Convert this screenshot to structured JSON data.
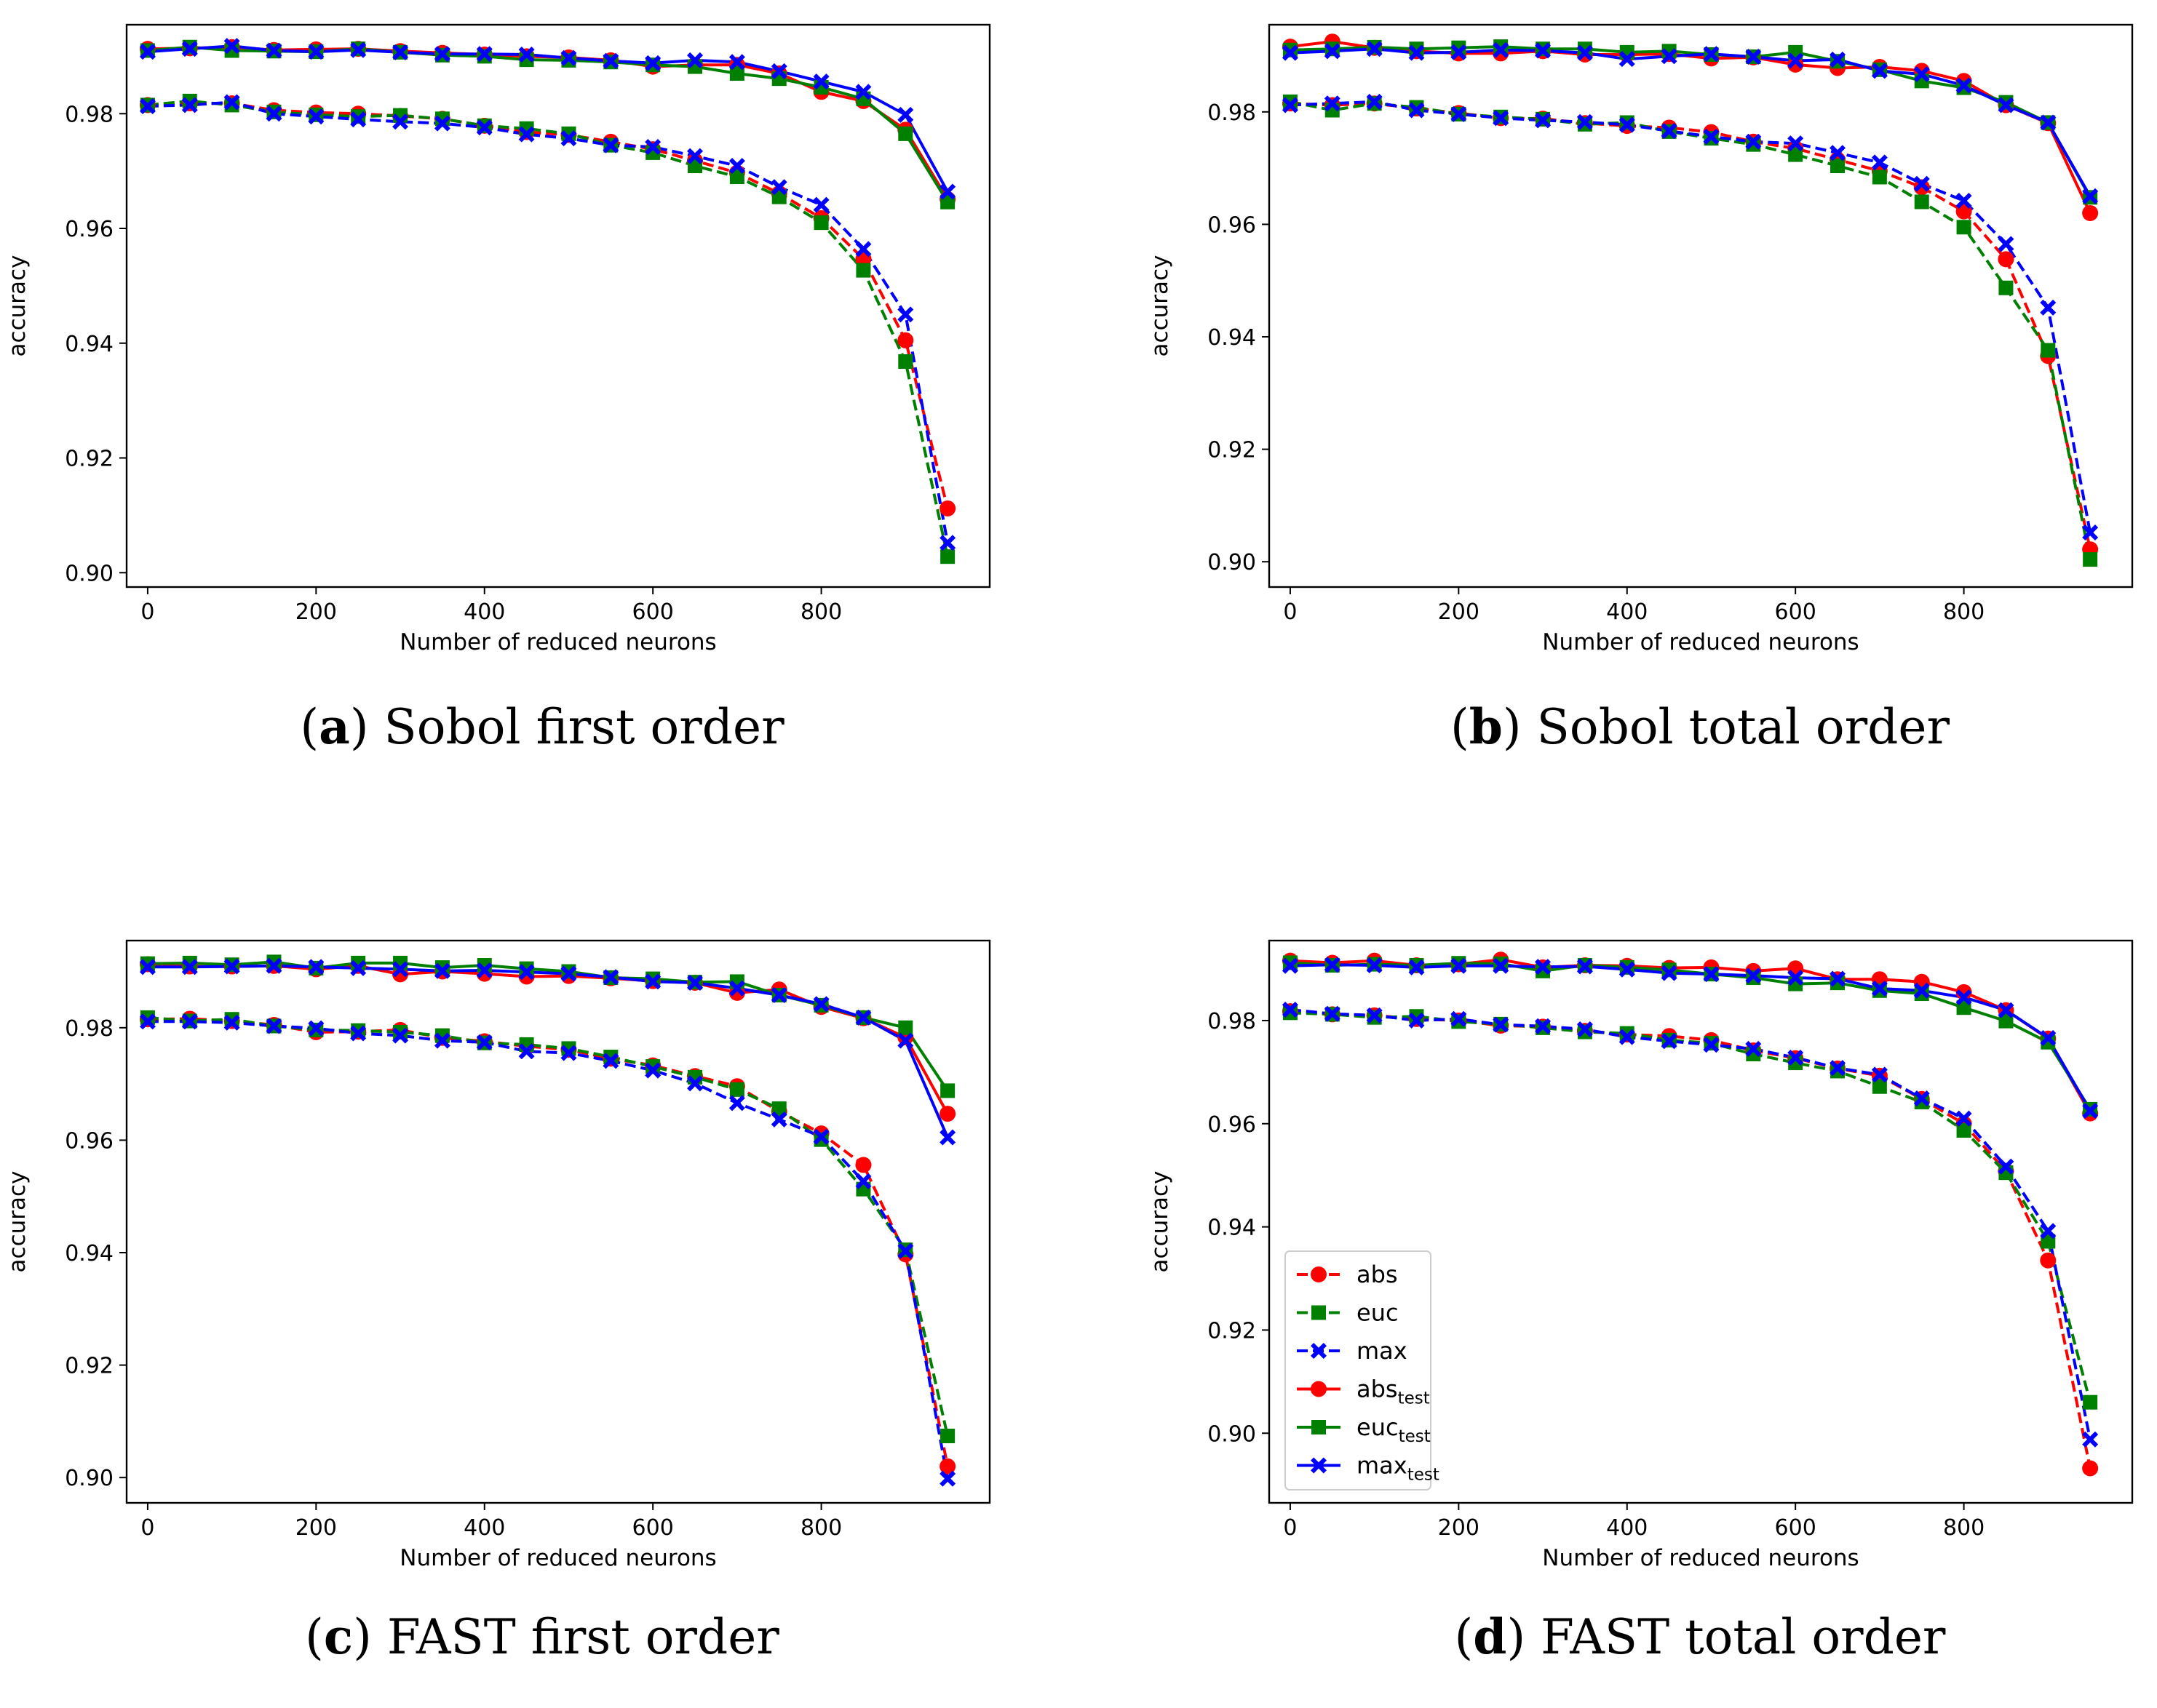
{
  "figure": {
    "legend": {
      "entries": [
        {
          "label": "abs",
          "sub": "",
          "color": "#ff0000",
          "dashed": true,
          "marker": "circle"
        },
        {
          "label": "euc",
          "sub": "",
          "color": "#008000",
          "dashed": true,
          "marker": "square"
        },
        {
          "label": "max",
          "sub": "",
          "color": "#0000ff",
          "dashed": true,
          "marker": "x"
        },
        {
          "label": "abs",
          "sub": "test",
          "color": "#ff0000",
          "dashed": false,
          "marker": "circle"
        },
        {
          "label": "euc",
          "sub": "test",
          "color": "#008000",
          "dashed": false,
          "marker": "square"
        },
        {
          "label": "max",
          "sub": "test",
          "color": "#0000ff",
          "dashed": false,
          "marker": "x"
        }
      ]
    }
  },
  "chart_data": [
    {
      "type": "line",
      "panel_letter": "a",
      "caption": "Sobol first order",
      "xlabel": "Number of reduced neurons",
      "ylabel": "accuracy",
      "xlim": [
        -25,
        1000
      ],
      "ylim": [
        0.8975,
        0.9955
      ],
      "xticks": [
        0,
        200,
        400,
        600,
        800
      ],
      "yticks": [
        0.9,
        0.92,
        0.94,
        0.96,
        0.98
      ],
      "ytick_labels": [
        "0.90",
        "0.92",
        "0.94",
        "0.96",
        "0.98"
      ],
      "x": [
        0,
        50,
        100,
        150,
        200,
        250,
        300,
        350,
        400,
        450,
        500,
        550,
        600,
        650,
        700,
        750,
        800,
        850,
        900,
        950
      ],
      "series": [
        {
          "name": "abs",
          "color": "#ff0000",
          "dashed": true,
          "marker": "circle",
          "values": [
            0.9815,
            0.9818,
            0.9818,
            0.9806,
            0.9802,
            0.98,
            0.9796,
            0.9791,
            0.9779,
            0.9768,
            0.9763,
            0.9751,
            0.9738,
            0.9718,
            0.9697,
            0.9661,
            0.9618,
            0.9547,
            0.9405,
            0.9112
          ]
        },
        {
          "name": "euc",
          "color": "#008000",
          "dashed": true,
          "marker": "square",
          "values": [
            0.9815,
            0.9822,
            0.9815,
            0.9803,
            0.9798,
            0.9795,
            0.9797,
            0.9791,
            0.9779,
            0.9774,
            0.9765,
            0.9745,
            0.9732,
            0.9709,
            0.969,
            0.9655,
            0.961,
            0.9527,
            0.9368,
            0.9028
          ]
        },
        {
          "name": "max",
          "color": "#0000ff",
          "dashed": true,
          "marker": "x",
          "values": [
            0.9813,
            0.9815,
            0.982,
            0.98,
            0.9795,
            0.979,
            0.9786,
            0.9783,
            0.9776,
            0.9764,
            0.9757,
            0.9745,
            0.9742,
            0.9726,
            0.9709,
            0.9672,
            0.9641,
            0.9564,
            0.945,
            0.9052
          ]
        },
        {
          "name": "abs_test",
          "color": "#ff0000",
          "dashed": false,
          "marker": "circle",
          "values": [
            0.9913,
            0.9914,
            0.9916,
            0.9911,
            0.9912,
            0.9913,
            0.9909,
            0.9906,
            0.9903,
            0.99,
            0.9898,
            0.9893,
            0.9882,
            0.9885,
            0.9885,
            0.987,
            0.9838,
            0.9822,
            0.9772,
            0.9651
          ]
        },
        {
          "name": "euc_test",
          "color": "#008000",
          "dashed": false,
          "marker": "square",
          "values": [
            0.991,
            0.9916,
            0.991,
            0.9909,
            0.9908,
            0.9913,
            0.9907,
            0.9902,
            0.99,
            0.9894,
            0.9893,
            0.989,
            0.9885,
            0.9882,
            0.987,
            0.9861,
            0.9846,
            0.9826,
            0.9765,
            0.9646
          ]
        },
        {
          "name": "max_test",
          "color": "#0000ff",
          "dashed": false,
          "marker": "x",
          "values": [
            0.9908,
            0.9913,
            0.9918,
            0.991,
            0.9908,
            0.9911,
            0.9907,
            0.9904,
            0.9904,
            0.9903,
            0.9897,
            0.9892,
            0.9888,
            0.9893,
            0.989,
            0.9874,
            0.9856,
            0.9838,
            0.9798,
            0.9664
          ]
        }
      ]
    },
    {
      "type": "line",
      "panel_letter": "b",
      "caption": "Sobol total order",
      "xlabel": "Number of reduced neurons",
      "ylabel": "accuracy",
      "xlim": [
        -25,
        1000
      ],
      "ylim": [
        0.8955,
        0.9955
      ],
      "xticks": [
        0,
        200,
        400,
        600,
        800
      ],
      "yticks": [
        0.9,
        0.92,
        0.94,
        0.96,
        0.98
      ],
      "ytick_labels": [
        "0.90",
        "0.92",
        "0.94",
        "0.96",
        "0.98"
      ],
      "x": [
        0,
        50,
        100,
        150,
        200,
        250,
        300,
        350,
        400,
        450,
        500,
        550,
        600,
        650,
        700,
        750,
        800,
        850,
        900,
        950
      ],
      "series": [
        {
          "name": "abs",
          "color": "#ff0000",
          "dashed": true,
          "marker": "circle",
          "values": [
            0.9815,
            0.9812,
            0.9815,
            0.9806,
            0.9798,
            0.9789,
            0.9788,
            0.978,
            0.9775,
            0.9772,
            0.9764,
            0.9747,
            0.9735,
            0.9715,
            0.9695,
            0.9666,
            0.9623,
            0.9538,
            0.9366,
            0.9022
          ]
        },
        {
          "name": "euc",
          "color": "#008000",
          "dashed": true,
          "marker": "square",
          "values": [
            0.9818,
            0.9803,
            0.9815,
            0.9808,
            0.9796,
            0.9791,
            0.9787,
            0.9778,
            0.9781,
            0.9765,
            0.9753,
            0.9742,
            0.9724,
            0.9704,
            0.9684,
            0.964,
            0.9595,
            0.9487,
            0.9376,
            0.9004
          ]
        },
        {
          "name": "max",
          "color": "#0000ff",
          "dashed": true,
          "marker": "x",
          "values": [
            0.9812,
            0.9815,
            0.9818,
            0.9803,
            0.9796,
            0.9789,
            0.9785,
            0.9782,
            0.9777,
            0.9766,
            0.9756,
            0.9747,
            0.9744,
            0.9727,
            0.971,
            0.9672,
            0.9642,
            0.9565,
            0.9452,
            0.9052
          ]
        },
        {
          "name": "abs_test",
          "color": "#ff0000",
          "dashed": false,
          "marker": "circle",
          "values": [
            0.9916,
            0.9925,
            0.9914,
            0.9908,
            0.9904,
            0.9904,
            0.9908,
            0.9902,
            0.9902,
            0.9903,
            0.9895,
            0.9897,
            0.9884,
            0.9878,
            0.988,
            0.9873,
            0.9855,
            0.9812,
            0.978,
            0.962
          ]
        },
        {
          "name": "euc_test",
          "color": "#008000",
          "dashed": false,
          "marker": "square",
          "values": [
            0.991,
            0.9912,
            0.9915,
            0.9912,
            0.9914,
            0.9916,
            0.9912,
            0.9912,
            0.9906,
            0.9908,
            0.9902,
            0.9898,
            0.9906,
            0.989,
            0.9875,
            0.9855,
            0.9843,
            0.9817,
            0.9781,
            0.9648
          ]
        },
        {
          "name": "max_test",
          "color": "#0000ff",
          "dashed": false,
          "marker": "x",
          "values": [
            0.9905,
            0.9908,
            0.9912,
            0.9905,
            0.9906,
            0.991,
            0.9909,
            0.9905,
            0.9894,
            0.9899,
            0.9903,
            0.9898,
            0.9891,
            0.9893,
            0.9873,
            0.9867,
            0.9847,
            0.9812,
            0.9781,
            0.965
          ]
        }
      ]
    },
    {
      "type": "line",
      "panel_letter": "c",
      "caption": "FAST first order",
      "xlabel": "Number of reduced neurons",
      "ylabel": "accuracy",
      "xlim": [
        -25,
        1000
      ],
      "ylim": [
        0.8955,
        0.9955
      ],
      "xticks": [
        0,
        200,
        400,
        600,
        800
      ],
      "yticks": [
        0.9,
        0.92,
        0.94,
        0.96,
        0.98
      ],
      "ytick_labels": [
        "0.90",
        "0.92",
        "0.94",
        "0.96",
        "0.98"
      ],
      "x": [
        0,
        50,
        100,
        150,
        200,
        250,
        300,
        350,
        400,
        450,
        500,
        550,
        600,
        650,
        700,
        750,
        800,
        850,
        900,
        950
      ],
      "series": [
        {
          "name": "abs",
          "color": "#ff0000",
          "dashed": true,
          "marker": "circle",
          "values": [
            0.9815,
            0.9816,
            0.9812,
            0.9805,
            0.9792,
            0.9793,
            0.9796,
            0.9782,
            0.9776,
            0.9767,
            0.9761,
            0.9745,
            0.9733,
            0.9714,
            0.9696,
            0.9651,
            0.9612,
            0.9556,
            0.9397,
            0.902
          ]
        },
        {
          "name": "euc",
          "color": "#008000",
          "dashed": true,
          "marker": "square",
          "values": [
            0.9818,
            0.9812,
            0.9815,
            0.9803,
            0.9796,
            0.9795,
            0.9792,
            0.9786,
            0.9773,
            0.977,
            0.9763,
            0.9748,
            0.9731,
            0.9712,
            0.969,
            0.9656,
            0.9601,
            0.9513,
            0.9405,
            0.9074
          ]
        },
        {
          "name": "max",
          "color": "#0000ff",
          "dashed": true,
          "marker": "x",
          "values": [
            0.9811,
            0.9811,
            0.9809,
            0.9803,
            0.9799,
            0.979,
            0.9786,
            0.9777,
            0.9774,
            0.9758,
            0.9755,
            0.9741,
            0.9724,
            0.9701,
            0.9666,
            0.9637,
            0.9606,
            0.9527,
            0.9403,
            0.8998
          ]
        },
        {
          "name": "abs_test",
          "color": "#ff0000",
          "dashed": false,
          "marker": "circle",
          "values": [
            0.9913,
            0.9909,
            0.9909,
            0.991,
            0.9904,
            0.991,
            0.9895,
            0.99,
            0.9896,
            0.9891,
            0.9892,
            0.9888,
            0.9883,
            0.988,
            0.9862,
            0.9868,
            0.9837,
            0.9817,
            0.9783,
            0.9647
          ]
        },
        {
          "name": "euc_test",
          "color": "#008000",
          "dashed": false,
          "marker": "square",
          "values": [
            0.9914,
            0.9915,
            0.9912,
            0.9917,
            0.9906,
            0.9915,
            0.9915,
            0.9907,
            0.9911,
            0.9905,
            0.99,
            0.9889,
            0.9887,
            0.9881,
            0.9882,
            0.9858,
            0.984,
            0.9818,
            0.98,
            0.9688
          ]
        },
        {
          "name": "max_test",
          "color": "#0000ff",
          "dashed": false,
          "marker": "x",
          "values": [
            0.9908,
            0.9908,
            0.9909,
            0.991,
            0.9908,
            0.9906,
            0.9904,
            0.9901,
            0.9902,
            0.9899,
            0.9896,
            0.989,
            0.9882,
            0.988,
            0.987,
            0.9858,
            0.9842,
            0.9818,
            0.9777,
            0.9605
          ]
        }
      ]
    },
    {
      "type": "line",
      "panel_letter": "d",
      "caption": "FAST total order",
      "xlabel": "Number of reduced neurons",
      "ylabel": "accuracy",
      "xlim": [
        -25,
        1000
      ],
      "ylim": [
        0.8865,
        0.9955
      ],
      "xticks": [
        0,
        200,
        400,
        600,
        800
      ],
      "yticks": [
        0.9,
        0.92,
        0.94,
        0.96,
        0.98
      ],
      "ytick_labels": [
        "0.90",
        "0.92",
        "0.94",
        "0.96",
        "0.98"
      ],
      "x": [
        0,
        50,
        100,
        150,
        200,
        250,
        300,
        350,
        400,
        450,
        500,
        550,
        600,
        650,
        700,
        750,
        800,
        850,
        900,
        950
      ],
      "series": [
        {
          "name": "abs",
          "color": "#ff0000",
          "dashed": true,
          "marker": "circle",
          "values": [
            0.9818,
            0.9812,
            0.981,
            0.9803,
            0.98,
            0.979,
            0.9788,
            0.978,
            0.9773,
            0.977,
            0.9762,
            0.9742,
            0.9727,
            0.9707,
            0.9693,
            0.9648,
            0.96,
            0.9508,
            0.9335,
            0.8932
          ]
        },
        {
          "name": "euc",
          "color": "#008000",
          "dashed": true,
          "marker": "square",
          "values": [
            0.9815,
            0.9812,
            0.9806,
            0.9808,
            0.9798,
            0.9793,
            0.9786,
            0.9778,
            0.9775,
            0.9762,
            0.9756,
            0.9735,
            0.9718,
            0.9702,
            0.9672,
            0.9642,
            0.9587,
            0.9505,
            0.9372,
            0.906
          ]
        },
        {
          "name": "max",
          "color": "#0000ff",
          "dashed": true,
          "marker": "x",
          "values": [
            0.9821,
            0.9813,
            0.981,
            0.98,
            0.9803,
            0.9792,
            0.9789,
            0.9783,
            0.9768,
            0.976,
            0.9753,
            0.9745,
            0.9728,
            0.9708,
            0.9695,
            0.9649,
            0.961,
            0.9517,
            0.9392,
            0.8988
          ]
        },
        {
          "name": "abs_test",
          "color": "#ff0000",
          "dashed": false,
          "marker": "circle",
          "values": [
            0.9916,
            0.9912,
            0.9916,
            0.9907,
            0.9909,
            0.9918,
            0.9903,
            0.9907,
            0.9906,
            0.9902,
            0.9903,
            0.9896,
            0.9901,
            0.988,
            0.988,
            0.9875,
            0.9855,
            0.982,
            0.9765,
            0.962
          ]
        },
        {
          "name": "euc_test",
          "color": "#008000",
          "dashed": false,
          "marker": "square",
          "values": [
            0.9912,
            0.9907,
            0.9909,
            0.9907,
            0.9911,
            0.991,
            0.9896,
            0.9907,
            0.9903,
            0.9898,
            0.989,
            0.9883,
            0.9871,
            0.9873,
            0.9858,
            0.9852,
            0.9825,
            0.9799,
            0.9758,
            0.9628
          ]
        },
        {
          "name": "max_test",
          "color": "#0000ff",
          "dashed": false,
          "marker": "x",
          "values": [
            0.9906,
            0.9908,
            0.9907,
            0.9903,
            0.9906,
            0.9906,
            0.9904,
            0.9905,
            0.9899,
            0.9892,
            0.989,
            0.9887,
            0.9883,
            0.9881,
            0.9862,
            0.9858,
            0.9845,
            0.982,
            0.9766,
            0.9625
          ]
        }
      ]
    }
  ]
}
